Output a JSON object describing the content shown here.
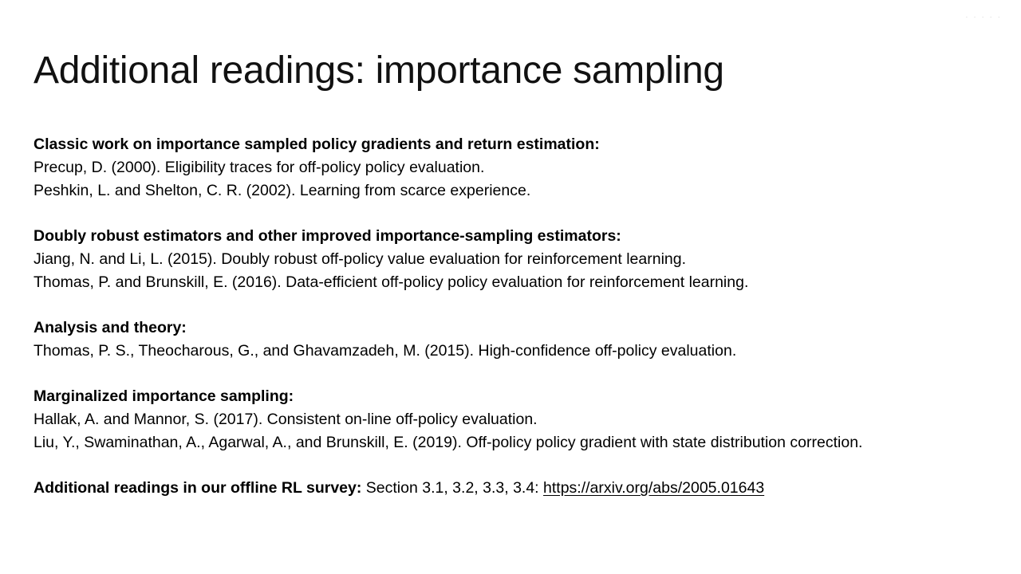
{
  "title": "Additional readings: importance sampling",
  "sections": [
    {
      "heading": "Classic work on importance sampled policy gradients and return estimation:",
      "refs": [
        "Precup, D. (2000). Eligibility traces for off-policy policy evaluation.",
        "Peshkin, L. and Shelton, C. R. (2002). Learning from scarce experience."
      ]
    },
    {
      "heading": "Doubly robust estimators and other improved importance-sampling estimators:",
      "refs": [
        "Jiang, N. and Li, L. (2015). Doubly robust off-policy value evaluation for reinforcement learning.",
        "Thomas, P. and Brunskill, E. (2016). Data-efficient off-policy policy evaluation for reinforcement learning."
      ]
    },
    {
      "heading": "Analysis and theory:",
      "refs": [
        "Thomas, P. S., Theocharous, G., and Ghavamzadeh, M. (2015). High-confidence off-policy evaluation."
      ]
    },
    {
      "heading": "Marginalized importance sampling:",
      "refs": [
        "Hallak, A. and Mannor, S. (2017). Consistent on-line off-policy evaluation.",
        "Liu, Y., Swaminathan, A., Agarwal, A., and Brunskill, E. (2019). Off-policy policy gradient with state distribution correction."
      ]
    }
  ],
  "survey": {
    "label": "Additional readings in our offline RL survey:",
    "sections_text": " Section 3.1, 3.2, 3.3, 3.4: ",
    "link_text": "https://arxiv.org/abs/2005.01643"
  }
}
